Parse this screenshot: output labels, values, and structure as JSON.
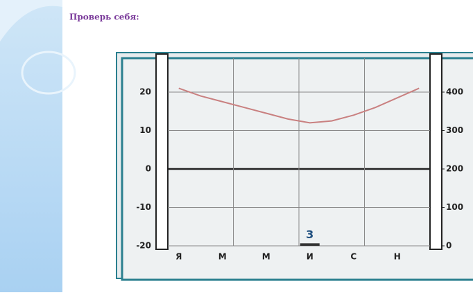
{
  "heading": "Проверь себя:",
  "chart_data": {
    "type": "climate",
    "categories": [
      "Я",
      null,
      "М",
      null,
      "М",
      null,
      "И",
      null,
      "С",
      null,
      "Н",
      null
    ],
    "series": [
      {
        "type": "line",
        "color": "#c98080",
        "values": [
          21,
          19,
          17.5,
          16,
          14.5,
          13,
          12,
          12.5,
          14,
          16,
          18.5,
          21
        ]
      },
      {
        "type": "bar",
        "axis": "y2",
        "color": "#333333",
        "values": [
          null,
          null,
          null,
          null,
          null,
          null,
          3,
          null,
          null,
          null,
          null,
          null
        ],
        "value_labels": [
          null,
          null,
          null,
          null,
          null,
          null,
          "3",
          null,
          null,
          null,
          null,
          null
        ]
      }
    ],
    "ylim": [
      -20,
      20
    ],
    "yticks": [
      -20,
      -10,
      0,
      10,
      20
    ],
    "y2lim": [
      0,
      400
    ],
    "y2ticks": [
      0,
      100,
      200,
      300,
      400
    ],
    "grid": true
  }
}
